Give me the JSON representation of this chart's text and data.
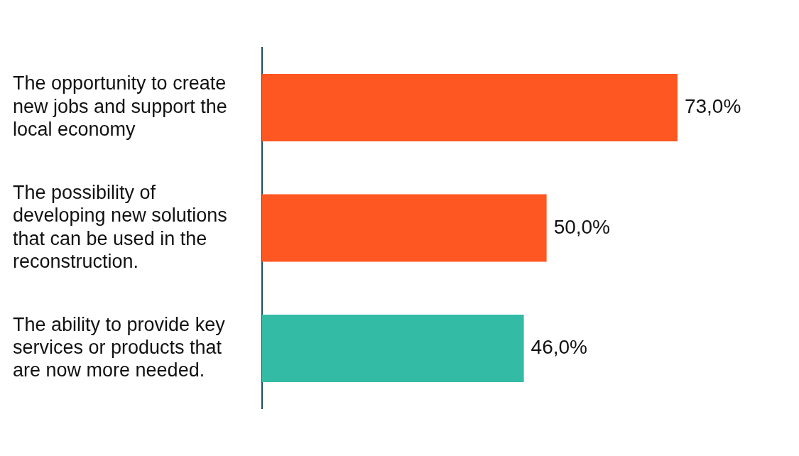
{
  "chart_data": {
    "type": "bar",
    "orientation": "horizontal",
    "categories": [
      "The opportunity to create new jobs and support the local economy",
      "The possibility of developing new solutions that can be used in the reconstruction.",
      "The ability to provide key services or products that are now more needed."
    ],
    "values": [
      73,
      50,
      46
    ],
    "colors": [
      "#ff5722",
      "#ff5722",
      "#33bba5"
    ],
    "value_labels": [
      "73,0%",
      "50,0%",
      "46,0%"
    ],
    "legend": false
  }
}
